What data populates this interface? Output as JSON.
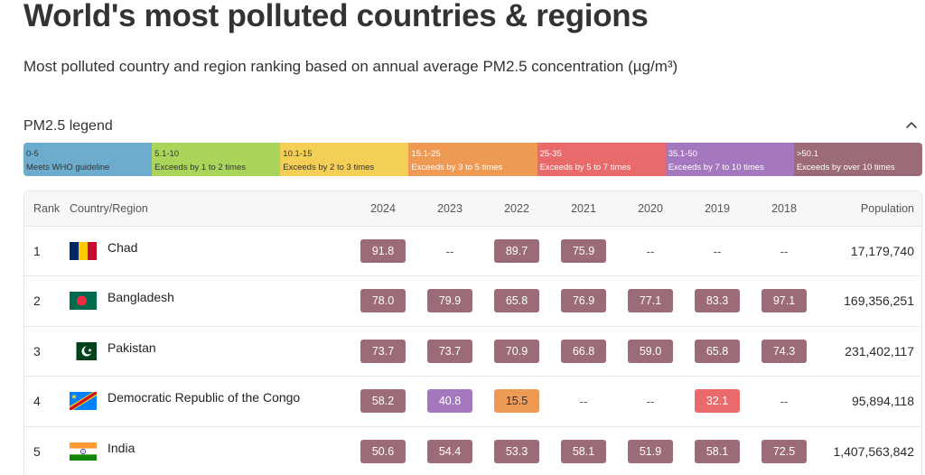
{
  "page": {
    "title": "World's most polluted countries & regions",
    "subtitle": "Most polluted country and region ranking based on annual average PM2.5 concentration (µg/m³)"
  },
  "legend": {
    "title": "PM2.5 legend",
    "toggle_icon": "chevron-up-icon",
    "items": [
      {
        "range": "0-5",
        "label": "Meets WHO guideline",
        "color": "#6eaccd"
      },
      {
        "range": "5.1-10",
        "label": "Exceeds by 1 to 2 times",
        "color": "#a9d65a"
      },
      {
        "range": "10.1-15",
        "label": "Exceeds by 2 to 3 times",
        "color": "#f3cf55"
      },
      {
        "range": "15.1-25",
        "label": "Exceeds by 3 to 5 times",
        "color": "#ee9a55"
      },
      {
        "range": "25-35",
        "label": "Exceeds by 5 to 7 times",
        "color": "#e86a6a"
      },
      {
        "range": "35.1-50",
        "label": "Exceeds by 7 to 10 times",
        "color": "#a577be"
      },
      {
        "range": ">50.1",
        "label": "Exceeds by over 10 times",
        "color": "#9b6b78"
      }
    ]
  },
  "table": {
    "headers": {
      "rank": "Rank",
      "country": "Country/Region",
      "years": [
        "2024",
        "2023",
        "2022",
        "2021",
        "2020",
        "2019",
        "2018"
      ],
      "population": "Population"
    },
    "rows": [
      {
        "rank": "1",
        "country": "Chad",
        "flag": "chad-flag-icon",
        "values": [
          "91.8",
          "--",
          "89.7",
          "75.9",
          "--",
          "--",
          "--"
        ],
        "population": "17,179,740"
      },
      {
        "rank": "2",
        "country": "Bangladesh",
        "flag": "bangladesh-flag-icon",
        "values": [
          "78.0",
          "79.9",
          "65.8",
          "76.9",
          "77.1",
          "83.3",
          "97.1"
        ],
        "population": "169,356,251"
      },
      {
        "rank": "3",
        "country": "Pakistan",
        "flag": "pakistan-flag-icon",
        "values": [
          "73.7",
          "73.7",
          "70.9",
          "66.8",
          "59.0",
          "65.8",
          "74.3"
        ],
        "population": "231,402,117"
      },
      {
        "rank": "4",
        "country": "Democratic Republic of the Congo",
        "flag": "drc-flag-icon",
        "values": [
          "58.2",
          "40.8",
          "15.5",
          "--",
          "--",
          "32.1",
          "--"
        ],
        "population": "95,894,118"
      },
      {
        "rank": "5",
        "country": "India",
        "flag": "india-flag-icon",
        "values": [
          "50.6",
          "54.4",
          "53.3",
          "58.1",
          "51.9",
          "58.1",
          "72.5"
        ],
        "population": "1,407,563,842"
      }
    ]
  }
}
